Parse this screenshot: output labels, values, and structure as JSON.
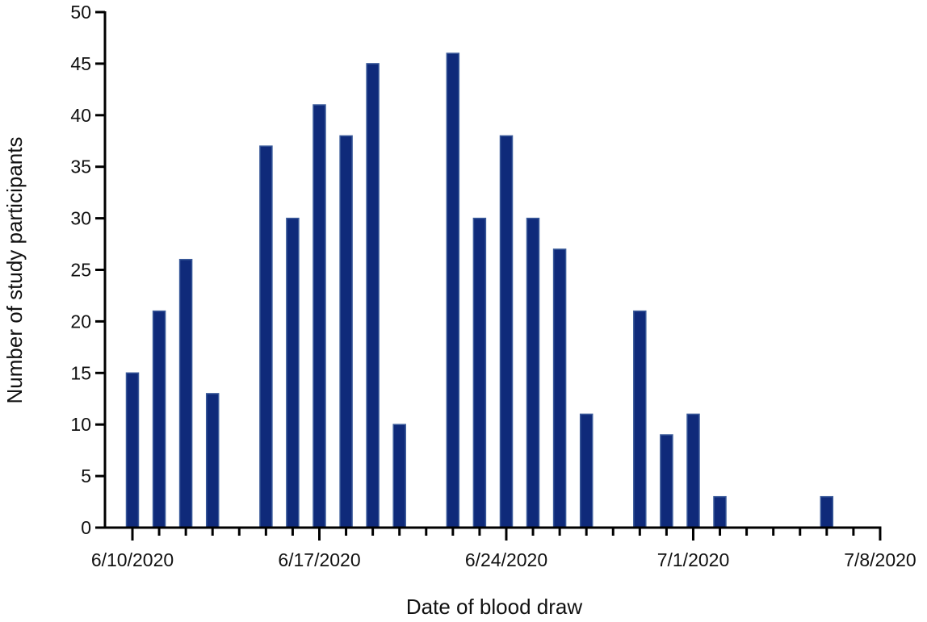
{
  "chart_data": {
    "type": "bar",
    "title": "",
    "xlabel": "Date of blood draw",
    "ylabel": "Number of study participants",
    "x_date_start": "6/10/2020",
    "x_date_end": "7/8/2020",
    "x_tick_labels": [
      "6/10/2020",
      "6/17/2020",
      "6/24/2020",
      "7/1/2020",
      "7/8/2020"
    ],
    "x_tick_label_dates": [
      "6/10/2020",
      "6/17/2020",
      "6/24/2020",
      "7/1/2020",
      "7/8/2020"
    ],
    "ylim": [
      0,
      50
    ],
    "y_ticks": [
      0,
      5,
      10,
      15,
      20,
      25,
      30,
      35,
      40,
      45,
      50
    ],
    "y_tick_labels": [
      "0",
      "5",
      "10",
      "15",
      "20",
      "25",
      "30",
      "35",
      "40",
      "45",
      "50"
    ],
    "grid": false,
    "bar_color": "#0f2a7a",
    "bar_edge_color": "#3a5a9a",
    "points": [
      {
        "date": "6/10/2020",
        "value": 15
      },
      {
        "date": "6/11/2020",
        "value": 21
      },
      {
        "date": "6/12/2020",
        "value": 26
      },
      {
        "date": "6/13/2020",
        "value": 13
      },
      {
        "date": "6/15/2020",
        "value": 37
      },
      {
        "date": "6/16/2020",
        "value": 30
      },
      {
        "date": "6/17/2020",
        "value": 41
      },
      {
        "date": "6/18/2020",
        "value": 38
      },
      {
        "date": "6/19/2020",
        "value": 45
      },
      {
        "date": "6/20/2020",
        "value": 10
      },
      {
        "date": "6/22/2020",
        "value": 46
      },
      {
        "date": "6/23/2020",
        "value": 30
      },
      {
        "date": "6/24/2020",
        "value": 38
      },
      {
        "date": "6/25/2020",
        "value": 30
      },
      {
        "date": "6/26/2020",
        "value": 27
      },
      {
        "date": "6/27/2020",
        "value": 11
      },
      {
        "date": "6/29/2020",
        "value": 21
      },
      {
        "date": "6/30/2020",
        "value": 9
      },
      {
        "date": "7/1/2020",
        "value": 11
      },
      {
        "date": "7/2/2020",
        "value": 3
      },
      {
        "date": "7/6/2020",
        "value": 3
      }
    ]
  }
}
